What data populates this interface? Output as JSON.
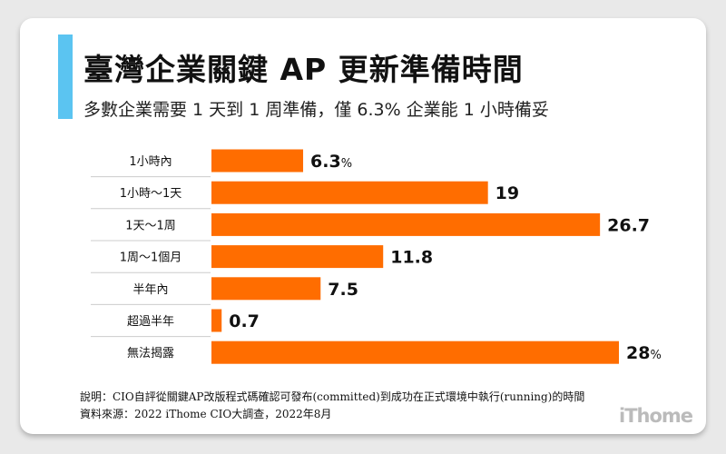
{
  "header": {
    "title": "臺灣企業關鍵 AP 更新準備時間",
    "subtitle": "多數企業需要 1 天到 1 周準備，僅 6.3% 企業能 1 小時備妥"
  },
  "colors": {
    "accent": "#5bc4f1",
    "bar": "#ff6d00",
    "background": "#e9e9e9"
  },
  "chart_data": {
    "type": "bar",
    "orientation": "horizontal",
    "title": "臺灣企業關鍵 AP 更新準備時間",
    "categories": [
      "1小時內",
      "1小時～1天",
      "1天～1周",
      "1周～1個月",
      "半年內",
      "超過半年",
      "無法揭露"
    ],
    "values": [
      6.3,
      19,
      26.7,
      11.8,
      7.5,
      0.7,
      28
    ],
    "value_labels": [
      "6.3",
      "19",
      "26.7",
      "11.8",
      "7.5",
      "0.7",
      "28"
    ],
    "value_suffix": [
      "%",
      "",
      "",
      "",
      "",
      "",
      "%"
    ],
    "unit": "%",
    "xlim": [
      0,
      28
    ],
    "grid": false
  },
  "footer": {
    "note": "說明：CIO自評從關鍵AP改版程式碼確認可發布(committed)到成功在正式環境中執行(running)的時間",
    "source": "資料來源：2022 iThome CIO大調查，2022年8月"
  },
  "logo": "iThome"
}
